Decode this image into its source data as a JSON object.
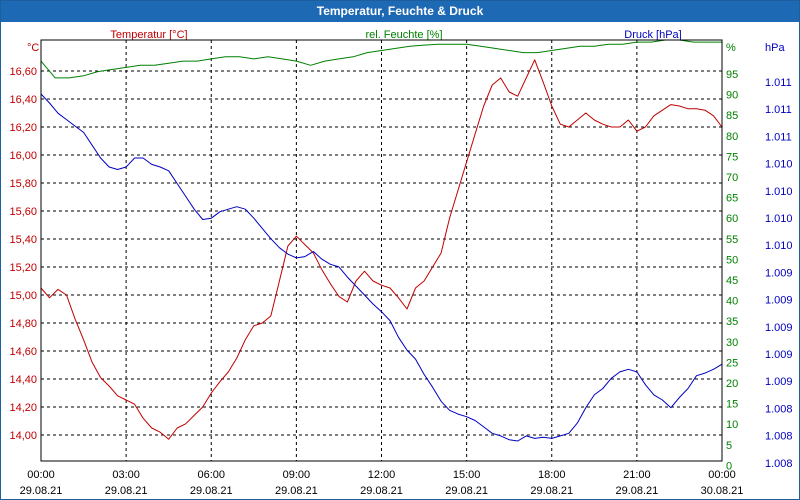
{
  "window": {
    "title": "Temperatur, Feuchte & Druck"
  },
  "colors": {
    "titlebar": "#1e69b4",
    "temperature": "#c00000",
    "humidity": "#008000",
    "pressure": "#0000c0",
    "grid": "#000000"
  },
  "chart_data": {
    "type": "line",
    "title": "Temperatur, Feuchte & Druck",
    "x_tick_times": [
      "00:00",
      "03:00",
      "06:00",
      "09:00",
      "12:00",
      "15:00",
      "18:00",
      "21:00",
      "00:00"
    ],
    "x_tick_dates": [
      "29.08.21",
      "29.08.21",
      "29.08.21",
      "29.08.21",
      "29.08.21",
      "29.08.21",
      "29.08.21",
      "29.08.21",
      "30.08.21"
    ],
    "x_range_hours": [
      0,
      24
    ],
    "axes": {
      "temperature": {
        "label": "Temperatur [°C]",
        "unit": "°C",
        "ylim": [
          13.92,
          16.78
        ],
        "ticks": [
          "16,60",
          "16,40",
          "16,20",
          "16,00",
          "15,80",
          "15,60",
          "15,40",
          "15,20",
          "15,00",
          "14,80",
          "14,60",
          "14,40",
          "14,20",
          "14,00"
        ]
      },
      "humidity": {
        "label": "rel. Feuchte [%]",
        "unit": "%",
        "ylim": [
          0,
          100
        ],
        "ticks": [
          "95",
          "90",
          "85",
          "80",
          "75",
          "70",
          "65",
          "60",
          "55",
          "50",
          "45",
          "40",
          "35",
          "30",
          "25",
          "20",
          "15",
          "10",
          "5",
          "0"
        ]
      },
      "pressure": {
        "label": "Druck [hPa]",
        "unit": "hPa",
        "ticks": [
          "1.011",
          "1.011",
          "1.011",
          "1.010",
          "1.010",
          "1.010",
          "1.010",
          "1.009",
          "1.009",
          "1.009",
          "1.009",
          "1.009",
          "1.008",
          "1.008",
          "1.008"
        ]
      }
    },
    "series": [
      {
        "name": "Temperatur",
        "axis": "temperature",
        "x": [
          0,
          0.3,
          0.6,
          0.9,
          1.2,
          1.5,
          1.8,
          2.1,
          2.4,
          2.7,
          3.0,
          3.3,
          3.6,
          3.9,
          4.2,
          4.5,
          4.8,
          5.1,
          5.4,
          5.7,
          6.0,
          6.3,
          6.6,
          6.9,
          7.2,
          7.5,
          7.8,
          8.1,
          8.4,
          8.7,
          9.0,
          9.3,
          9.6,
          9.9,
          10.2,
          10.5,
          10.8,
          11.1,
          11.4,
          11.7,
          12.0,
          12.3,
          12.6,
          12.9,
          13.2,
          13.5,
          13.8,
          14.1,
          14.4,
          14.7,
          15.0,
          15.3,
          15.6,
          15.9,
          16.2,
          16.5,
          16.8,
          17.1,
          17.4,
          17.7,
          18.0,
          18.3,
          18.6,
          18.9,
          19.2,
          19.5,
          19.8,
          20.1,
          20.4,
          20.7,
          21.0,
          21.3,
          21.6,
          21.9,
          22.2,
          22.5,
          22.8,
          23.1,
          23.4,
          23.7,
          24.0
        ],
        "values": [
          15.05,
          14.98,
          15.04,
          15.0,
          14.83,
          14.68,
          14.52,
          14.41,
          14.35,
          14.28,
          14.25,
          14.22,
          14.12,
          14.05,
          14.02,
          13.97,
          14.05,
          14.08,
          14.14,
          14.2,
          14.3,
          14.38,
          14.45,
          14.55,
          14.68,
          14.78,
          14.8,
          14.85,
          15.1,
          15.35,
          15.42,
          15.36,
          15.3,
          15.18,
          15.08,
          14.99,
          14.95,
          15.1,
          15.17,
          15.1,
          15.07,
          15.05,
          14.98,
          14.9,
          15.05,
          15.1,
          15.2,
          15.3,
          15.55,
          15.75,
          15.95,
          16.15,
          16.35,
          16.5,
          16.55,
          16.45,
          16.42,
          16.55,
          16.68,
          16.52,
          16.35,
          16.22,
          16.2,
          16.25,
          16.3,
          16.25,
          16.22,
          16.2,
          16.2,
          16.25,
          16.17,
          16.2,
          16.28,
          16.32,
          16.36,
          16.35,
          16.33,
          16.33,
          16.32,
          16.28,
          16.2
        ]
      },
      {
        "name": "rel. Feuchte",
        "axis": "humidity",
        "x": [
          0,
          0.5,
          1.0,
          1.5,
          2.0,
          2.5,
          3.0,
          3.5,
          4.0,
          4.5,
          5.0,
          5.5,
          6.0,
          6.5,
          7.0,
          7.5,
          8.0,
          8.5,
          9.0,
          9.5,
          10.0,
          10.5,
          11.0,
          11.5,
          12.0,
          12.5,
          13.0,
          13.5,
          14.0,
          14.5,
          15.0,
          15.5,
          16.0,
          16.5,
          17.0,
          17.5,
          18.0,
          18.5,
          19.0,
          19.5,
          20.0,
          20.5,
          21.0,
          21.5,
          22.0,
          22.5,
          23.0,
          23.5,
          24.0
        ],
        "values": [
          95,
          91,
          91,
          91.5,
          92.5,
          93,
          93.5,
          94,
          94,
          94.5,
          95,
          95,
          95.5,
          96,
          96,
          95.5,
          96,
          95.5,
          95,
          94,
          95,
          95.5,
          96,
          97,
          97.5,
          98,
          98.5,
          98.8,
          99,
          99,
          99,
          98.5,
          98,
          97.5,
          97,
          97,
          97.5,
          98,
          98.5,
          98.5,
          99,
          99,
          99.5,
          99.5,
          100,
          100,
          99.5,
          99.5,
          99.5
        ]
      },
      {
        "name": "Druck",
        "axis": "pressure",
        "x": [
          0,
          0.3,
          0.6,
          0.9,
          1.2,
          1.5,
          1.8,
          2.1,
          2.4,
          2.7,
          3.0,
          3.3,
          3.6,
          3.9,
          4.2,
          4.5,
          4.8,
          5.1,
          5.4,
          5.7,
          6.0,
          6.3,
          6.6,
          6.9,
          7.2,
          7.5,
          7.8,
          8.1,
          8.4,
          8.7,
          9.0,
          9.3,
          9.6,
          9.9,
          10.2,
          10.5,
          10.8,
          11.1,
          11.4,
          11.7,
          12.0,
          12.3,
          12.6,
          12.9,
          13.2,
          13.5,
          13.8,
          14.1,
          14.4,
          14.7,
          15.0,
          15.3,
          15.6,
          15.9,
          16.2,
          16.5,
          16.8,
          17.1,
          17.4,
          17.7,
          18.0,
          18.3,
          18.6,
          18.9,
          19.2,
          19.5,
          19.8,
          20.1,
          20.4,
          20.7,
          21.0,
          21.3,
          21.6,
          21.9,
          22.2,
          22.5,
          22.8,
          23.1,
          23.4,
          23.7,
          24.0
        ],
        "values": [
          1.01095,
          1.01088,
          1.0108,
          1.01075,
          1.0107,
          1.01065,
          1.01055,
          1.01045,
          1.01038,
          1.01036,
          1.01038,
          1.01045,
          1.01045,
          1.0104,
          1.01038,
          1.01035,
          1.01025,
          1.01015,
          1.01005,
          1.00997,
          1.00998,
          1.01003,
          1.01005,
          1.01007,
          1.01005,
          1.00998,
          1.0099,
          1.00982,
          1.00975,
          1.0097,
          1.00967,
          1.00968,
          1.00972,
          1.00966,
          1.00962,
          1.0096,
          1.00952,
          1.00945,
          1.00938,
          1.00931,
          1.00925,
          1.00918,
          1.00905,
          1.00895,
          1.00888,
          1.00876,
          1.00866,
          1.00855,
          1.00848,
          1.00845,
          1.00843,
          1.0084,
          1.00835,
          1.0083,
          1.00828,
          1.00825,
          1.00824,
          1.00828,
          1.00826,
          1.00827,
          1.00826,
          1.00828,
          1.0083,
          1.00838,
          1.0085,
          1.0086,
          1.00865,
          1.00873,
          1.00878,
          1.0088,
          1.00878,
          1.00868,
          1.0086,
          1.00856,
          1.0085,
          1.00858,
          1.00865,
          1.00875,
          1.00877,
          1.0088,
          1.00884
        ]
      }
    ]
  }
}
